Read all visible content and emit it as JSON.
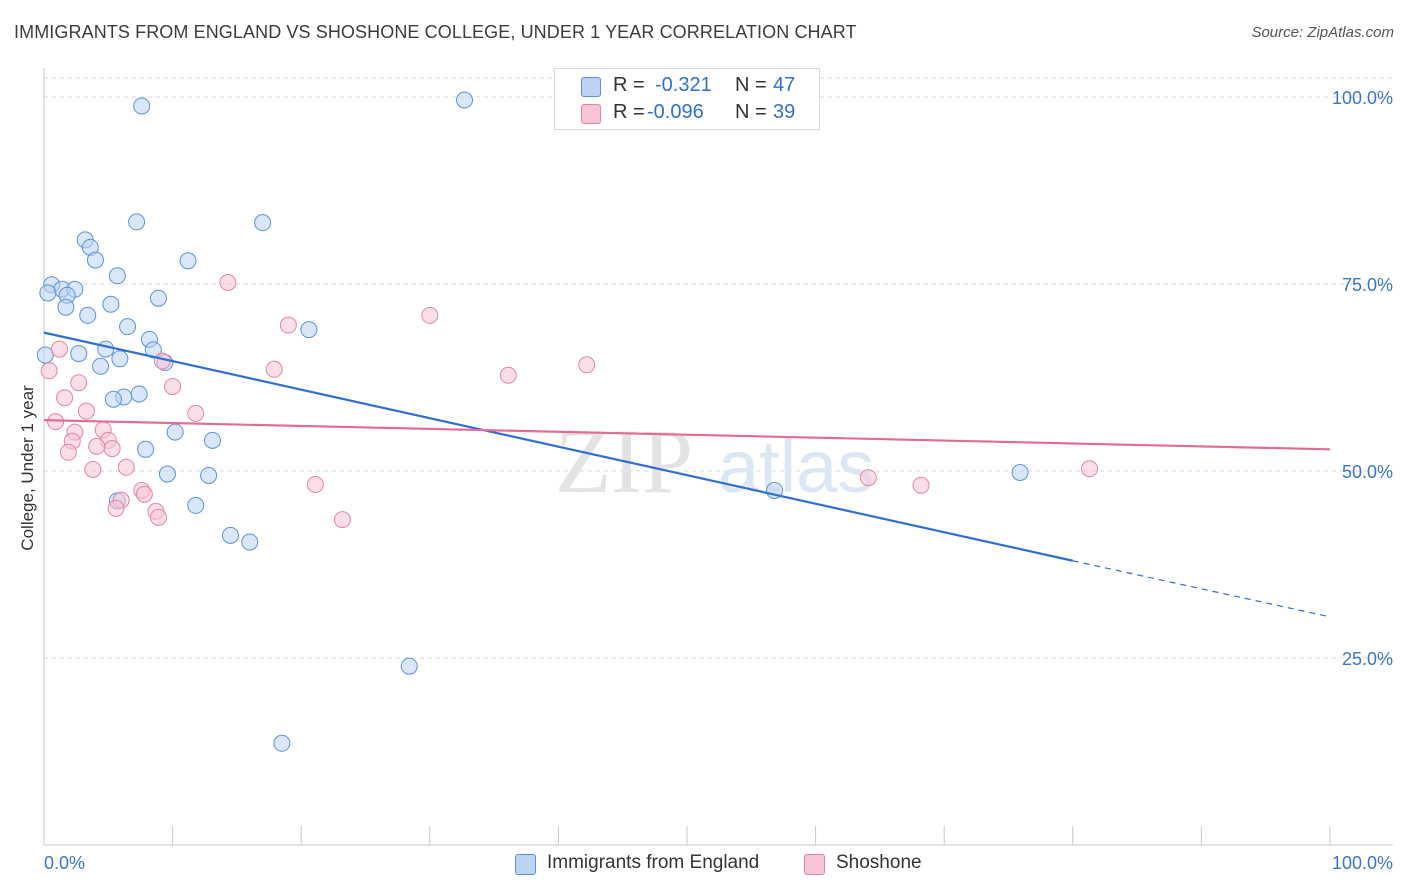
{
  "chart_data": {
    "type": "scatter",
    "title": "IMMIGRANTS FROM ENGLAND VS SHOSHONE COLLEGE, UNDER 1 YEAR CORRELATION CHART",
    "source": "Source: ZipAtlas.com",
    "ylabel": "College, Under 1 year",
    "xlim": [
      0,
      100
    ],
    "ylim": [
      0,
      100
    ],
    "x_tick_labels": [
      "0.0%",
      "100.0%"
    ],
    "y_ticks": [
      25,
      50,
      75,
      100
    ],
    "y_tick_labels": [
      "25.0%",
      "50.0%",
      "75.0%",
      "100.0%"
    ],
    "grid": true,
    "watermark": {
      "part1": "ZIP",
      "part2": "atlas"
    },
    "legend_stats": [
      {
        "r_label": "R =",
        "r_value": "-0.321",
        "n_label": "N =",
        "n_value": "47"
      },
      {
        "r_label": "R =",
        "r_value": "-0.096",
        "n_label": "N =",
        "n_value": "39"
      }
    ],
    "series": [
      {
        "name": "Immigrants from England",
        "color": "#5b92d6",
        "fill": "#bcd4f2",
        "trend": {
          "x0": 0,
          "y0": 68.5,
          "x1": 80,
          "y1": 38.0,
          "dash_to_x": 100,
          "dash_to_y": 30.5
        },
        "points": [
          [
            7.6,
            98.8
          ],
          [
            32.7,
            99.6
          ],
          [
            7.2,
            83.3
          ],
          [
            17.0,
            83.2
          ],
          [
            3.2,
            80.9
          ],
          [
            3.6,
            79.9
          ],
          [
            4.0,
            78.2
          ],
          [
            11.2,
            78.1
          ],
          [
            5.7,
            76.1
          ],
          [
            0.6,
            74.9
          ],
          [
            1.4,
            74.3
          ],
          [
            2.4,
            74.3
          ],
          [
            0.3,
            73.8
          ],
          [
            1.8,
            73.5
          ],
          [
            8.9,
            73.1
          ],
          [
            5.2,
            72.3
          ],
          [
            1.7,
            71.9
          ],
          [
            3.4,
            70.8
          ],
          [
            6.5,
            69.3
          ],
          [
            20.6,
            68.9
          ],
          [
            8.2,
            67.6
          ],
          [
            4.8,
            66.3
          ],
          [
            8.5,
            66.2
          ],
          [
            2.7,
            65.7
          ],
          [
            5.9,
            65.0
          ],
          [
            9.4,
            64.5
          ],
          [
            4.4,
            64.0
          ],
          [
            0.1,
            65.5
          ],
          [
            7.4,
            60.3
          ],
          [
            6.2,
            59.9
          ],
          [
            5.4,
            59.6
          ],
          [
            10.2,
            55.2
          ],
          [
            13.1,
            54.1
          ],
          [
            7.9,
            52.9
          ],
          [
            9.6,
            49.6
          ],
          [
            12.8,
            49.4
          ],
          [
            5.7,
            46.0
          ],
          [
            11.8,
            45.4
          ],
          [
            14.5,
            41.4
          ],
          [
            16.0,
            40.5
          ],
          [
            28.4,
            23.9
          ],
          [
            18.5,
            13.6
          ],
          [
            56.8,
            47.4
          ],
          [
            75.9,
            49.8
          ]
        ]
      },
      {
        "name": "Shoshone",
        "color": "#e284a6",
        "fill": "#f7c5d6",
        "trend": {
          "x0": 0,
          "y0": 56.8,
          "x1": 100,
          "y1": 52.9
        },
        "points": [
          [
            14.3,
            75.2
          ],
          [
            30.0,
            70.8
          ],
          [
            19.0,
            69.5
          ],
          [
            1.2,
            66.3
          ],
          [
            0.4,
            63.4
          ],
          [
            9.2,
            64.7
          ],
          [
            17.9,
            63.6
          ],
          [
            36.1,
            62.8
          ],
          [
            42.2,
            64.2
          ],
          [
            2.7,
            61.8
          ],
          [
            10.0,
            61.3
          ],
          [
            1.6,
            59.8
          ],
          [
            3.3,
            58.0
          ],
          [
            11.8,
            57.7
          ],
          [
            0.9,
            56.6
          ],
          [
            4.6,
            55.5
          ],
          [
            2.4,
            55.2
          ],
          [
            5.0,
            54.1
          ],
          [
            2.2,
            54.0
          ],
          [
            4.1,
            53.3
          ],
          [
            5.3,
            53.0
          ],
          [
            1.9,
            52.5
          ],
          [
            6.4,
            50.5
          ],
          [
            3.8,
            50.2
          ],
          [
            21.1,
            48.2
          ],
          [
            7.6,
            47.4
          ],
          [
            7.8,
            46.9
          ],
          [
            6.0,
            46.1
          ],
          [
            5.6,
            45.0
          ],
          [
            8.7,
            44.6
          ],
          [
            8.9,
            43.8
          ],
          [
            23.2,
            43.5
          ],
          [
            64.1,
            49.1
          ],
          [
            68.2,
            48.1
          ],
          [
            81.3,
            50.3
          ]
        ]
      }
    ]
  }
}
